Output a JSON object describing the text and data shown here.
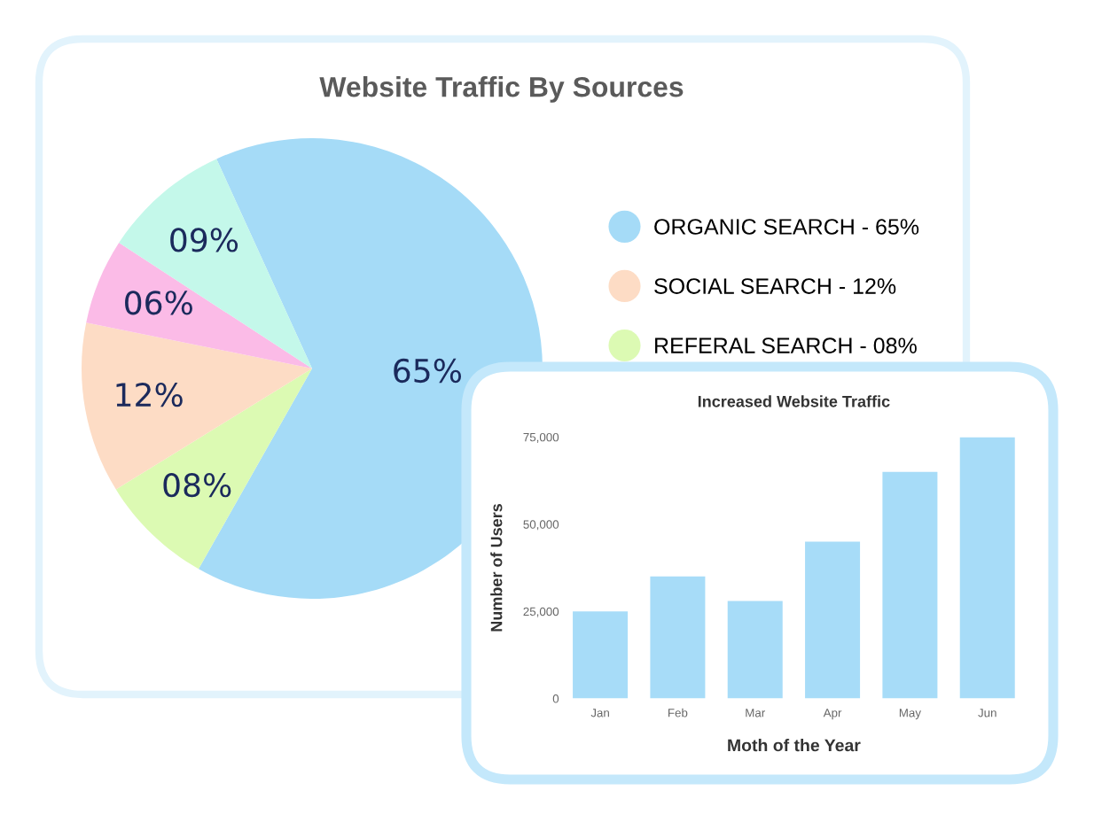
{
  "chart_data": [
    {
      "type": "pie",
      "title": "Website Traffic By Sources",
      "categories": [
        "ORGANIC SEARCH - 65%",
        "REFERAL SEARCH - 08%",
        "SOCIAL SEARCH - 12%",
        null,
        null
      ],
      "values": [
        65,
        8,
        12,
        6,
        9
      ],
      "colors": [
        "#a5dbf7",
        "#dcfab3",
        "#fddcc5",
        "#fbbbe7",
        "#c4f8ea"
      ],
      "value_labels": [
        "65%",
        "08%",
        "12%",
        "06%",
        "09%"
      ],
      "legend": "right"
    },
    {
      "type": "bar",
      "title": "Increased Website Traffic",
      "xlabel": "Moth of the Year",
      "ylabel": "Number of Users",
      "categories": [
        "Jan",
        "Feb",
        "Mar",
        "Apr",
        "May",
        "Jun"
      ],
      "values": [
        25000,
        35000,
        28000,
        45000,
        65000,
        75000
      ],
      "color": "#a7dcf8",
      "ylim": [
        0,
        75000
      ],
      "yticks": [
        0,
        {
          "value": 25000,
          "label": "25,000"
        },
        {
          "value": 50000,
          "label": "50,000"
        },
        {
          "value": 75000,
          "label": "75,000"
        }
      ]
    }
  ]
}
